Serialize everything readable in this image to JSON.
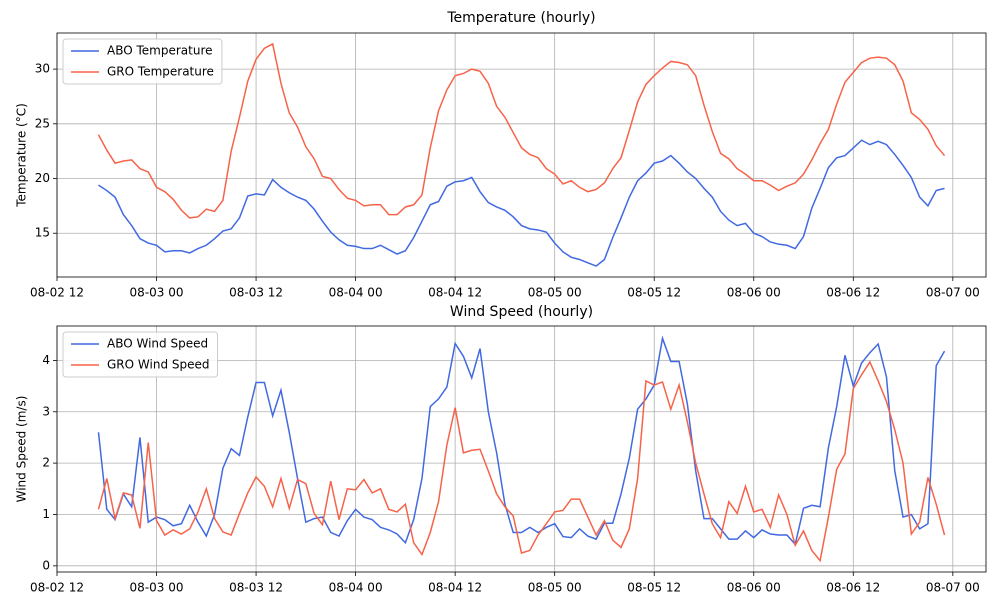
{
  "chart_data": [
    {
      "type": "line",
      "title": "Temperature (hourly)",
      "ylabel": "Temperature (°C)",
      "x": [
        "08-02 17",
        "08-02 18",
        "08-02 19",
        "08-02 20",
        "08-02 21",
        "08-02 22",
        "08-02 23",
        "08-03 00",
        "08-03 01",
        "08-03 02",
        "08-03 03",
        "08-03 04",
        "08-03 05",
        "08-03 06",
        "08-03 07",
        "08-03 08",
        "08-03 09",
        "08-03 10",
        "08-03 11",
        "08-03 12",
        "08-03 13",
        "08-03 14",
        "08-03 15",
        "08-03 16",
        "08-03 17",
        "08-03 18",
        "08-03 19",
        "08-03 20",
        "08-03 21",
        "08-03 22",
        "08-03 23",
        "08-04 00",
        "08-04 01",
        "08-04 02",
        "08-04 03",
        "08-04 04",
        "08-04 05",
        "08-04 06",
        "08-04 07",
        "08-04 08",
        "08-04 09",
        "08-04 10",
        "08-04 11",
        "08-04 12",
        "08-04 13",
        "08-04 14",
        "08-04 15",
        "08-04 16",
        "08-04 17",
        "08-04 18",
        "08-04 19",
        "08-04 20",
        "08-04 21",
        "08-04 22",
        "08-04 23",
        "08-05 00",
        "08-05 01",
        "08-05 02",
        "08-05 03",
        "08-05 04",
        "08-05 05",
        "08-05 06",
        "08-05 07",
        "08-05 08",
        "08-05 09",
        "08-05 10",
        "08-05 11",
        "08-05 12",
        "08-05 13",
        "08-05 14",
        "08-05 15",
        "08-05 16",
        "08-05 17",
        "08-05 18",
        "08-05 19",
        "08-05 20",
        "08-05 21",
        "08-05 22",
        "08-05 23",
        "08-06 00",
        "08-06 01",
        "08-06 02",
        "08-06 03",
        "08-06 04",
        "08-06 05",
        "08-06 06",
        "08-06 07",
        "08-06 08",
        "08-06 09",
        "08-06 10",
        "08-06 11",
        "08-06 12",
        "08-06 13",
        "08-06 14",
        "08-06 15",
        "08-06 16",
        "08-06 17",
        "08-06 18",
        "08-06 19",
        "08-06 20",
        "08-06 21",
        "08-06 22",
        "08-06 23"
      ],
      "series": [
        {
          "name": "ABO Temperature",
          "color": "#4169e1",
          "values": [
            19.4,
            18.9,
            18.3,
            16.7,
            15.7,
            14.5,
            14.1,
            13.9,
            13.3,
            13.4,
            13.4,
            13.2,
            13.6,
            13.9,
            14.5,
            15.2,
            15.4,
            16.4,
            18.4,
            18.6,
            18.5,
            19.9,
            19.2,
            18.7,
            18.3,
            18.0,
            17.2,
            16.1,
            15.1,
            14.4,
            13.9,
            13.8,
            13.6,
            13.6,
            13.9,
            13.5,
            13.1,
            13.4,
            14.6,
            16.1,
            17.6,
            17.9,
            19.3,
            19.7,
            19.8,
            20.1,
            18.8,
            17.8,
            17.4,
            17.1,
            16.5,
            15.7,
            15.4,
            15.3,
            15.1,
            14.1,
            13.3,
            12.8,
            12.6,
            12.3,
            12.0,
            12.6,
            14.6,
            16.4,
            18.3,
            19.8,
            20.5,
            21.4,
            21.6,
            22.1,
            21.4,
            20.6,
            20.0,
            19.1,
            18.3,
            17.0,
            16.2,
            15.7,
            15.9,
            15.0,
            14.7,
            14.2,
            14.0,
            13.9,
            13.6,
            14.7,
            17.3,
            19.1,
            21.0,
            21.9,
            22.1,
            22.8,
            23.5,
            23.1,
            23.4,
            23.1,
            22.2,
            21.2,
            20.1,
            18.3,
            17.5,
            18.9,
            19.1
          ]
        },
        {
          "name": "GRO Temperature",
          "color": "#f7634a",
          "values": [
            24.0,
            22.6,
            21.4,
            21.6,
            21.7,
            20.9,
            20.6,
            19.2,
            18.8,
            18.1,
            17.1,
            16.4,
            16.5,
            17.2,
            17.0,
            18.0,
            22.5,
            25.6,
            28.9,
            30.9,
            31.9,
            32.3,
            28.7,
            26.0,
            24.7,
            22.9,
            21.8,
            20.2,
            20.0,
            19.0,
            18.2,
            18.0,
            17.5,
            17.6,
            17.6,
            16.7,
            16.7,
            17.4,
            17.6,
            18.5,
            22.8,
            26.2,
            28.1,
            29.4,
            29.6,
            30.0,
            29.8,
            28.7,
            26.6,
            25.6,
            24.2,
            22.8,
            22.2,
            21.9,
            20.9,
            20.4,
            19.5,
            19.8,
            19.2,
            18.8,
            19.0,
            19.6,
            20.9,
            21.9,
            24.4,
            27.0,
            28.6,
            29.4,
            30.1,
            30.7,
            30.6,
            30.4,
            29.4,
            26.7,
            24.3,
            22.3,
            21.8,
            20.9,
            20.4,
            19.8,
            19.8,
            19.4,
            18.9,
            19.3,
            19.6,
            20.4,
            21.7,
            23.2,
            24.5,
            26.8,
            28.8,
            29.7,
            30.6,
            31.0,
            31.1,
            31.0,
            30.4,
            28.9,
            26.0,
            25.4,
            24.5,
            23.0,
            22.1
          ]
        }
      ],
      "xlim": [
        "08-02 12",
        "08-07 04"
      ],
      "xticks": [
        "08-02 12",
        "08-03 00",
        "08-03 12",
        "08-04 00",
        "08-04 12",
        "08-05 00",
        "08-05 12",
        "08-06 00",
        "08-06 12",
        "08-07 00"
      ],
      "ylim": [
        11.0,
        33.3
      ],
      "yticks": [
        15,
        20,
        25,
        30
      ],
      "grid": true,
      "legend": "upper left"
    },
    {
      "type": "line",
      "title": "Wind Speed (hourly)",
      "ylabel": "Wind Speed (m/s)",
      "x": [
        "08-02 17",
        "08-02 18",
        "08-02 19",
        "08-02 20",
        "08-02 21",
        "08-02 22",
        "08-02 23",
        "08-03 00",
        "08-03 01",
        "08-03 02",
        "08-03 03",
        "08-03 04",
        "08-03 05",
        "08-03 06",
        "08-03 07",
        "08-03 08",
        "08-03 09",
        "08-03 10",
        "08-03 11",
        "08-03 12",
        "08-03 13",
        "08-03 14",
        "08-03 15",
        "08-03 16",
        "08-03 17",
        "08-03 18",
        "08-03 19",
        "08-03 20",
        "08-03 21",
        "08-03 22",
        "08-03 23",
        "08-04 00",
        "08-04 01",
        "08-04 02",
        "08-04 03",
        "08-04 04",
        "08-04 05",
        "08-04 06",
        "08-04 07",
        "08-04 08",
        "08-04 09",
        "08-04 10",
        "08-04 11",
        "08-04 12",
        "08-04 13",
        "08-04 14",
        "08-04 15",
        "08-04 16",
        "08-04 17",
        "08-04 18",
        "08-04 19",
        "08-04 20",
        "08-04 21",
        "08-04 22",
        "08-04 23",
        "08-05 00",
        "08-05 01",
        "08-05 02",
        "08-05 03",
        "08-05 04",
        "08-05 05",
        "08-05 06",
        "08-05 07",
        "08-05 08",
        "08-05 09",
        "08-05 10",
        "08-05 11",
        "08-05 12",
        "08-05 13",
        "08-05 14",
        "08-05 15",
        "08-05 16",
        "08-05 17",
        "08-05 18",
        "08-05 19",
        "08-05 20",
        "08-05 21",
        "08-05 22",
        "08-05 23",
        "08-06 00",
        "08-06 01",
        "08-06 02",
        "08-06 03",
        "08-06 04",
        "08-06 05",
        "08-06 06",
        "08-06 07",
        "08-06 08",
        "08-06 09",
        "08-06 10",
        "08-06 11",
        "08-06 12",
        "08-06 13",
        "08-06 14",
        "08-06 15",
        "08-06 16",
        "08-06 17",
        "08-06 18",
        "08-06 19",
        "08-06 20",
        "08-06 21",
        "08-06 22",
        "08-06 23"
      ],
      "series": [
        {
          "name": "ABO Wind Speed",
          "color": "#4169e1",
          "values": [
            2.6,
            1.1,
            0.9,
            1.4,
            1.15,
            2.5,
            0.85,
            0.95,
            0.9,
            0.78,
            0.82,
            1.18,
            0.85,
            0.58,
            1.0,
            1.9,
            2.28,
            2.15,
            2.9,
            3.57,
            3.57,
            2.92,
            3.42,
            2.6,
            1.7,
            0.85,
            0.92,
            0.95,
            0.65,
            0.58,
            0.88,
            1.1,
            0.95,
            0.9,
            0.75,
            0.7,
            0.62,
            0.45,
            0.9,
            1.7,
            3.1,
            3.25,
            3.48,
            4.33,
            4.08,
            3.66,
            4.23,
            3.0,
            2.2,
            1.2,
            0.65,
            0.65,
            0.75,
            0.65,
            0.75,
            0.82,
            0.57,
            0.55,
            0.72,
            0.58,
            0.52,
            0.83,
            0.83,
            1.4,
            2.1,
            3.05,
            3.25,
            3.52,
            4.43,
            3.98,
            3.98,
            3.15,
            1.85,
            0.92,
            0.92,
            0.72,
            0.52,
            0.52,
            0.68,
            0.55,
            0.7,
            0.62,
            0.6,
            0.6,
            0.42,
            1.12,
            1.18,
            1.15,
            2.3,
            3.1,
            4.1,
            3.5,
            3.95,
            4.15,
            4.32,
            3.68,
            1.85,
            0.95,
            1.0,
            0.72,
            0.82,
            3.9,
            4.18
          ]
        },
        {
          "name": "GRO Wind Speed",
          "color": "#f7634a",
          "values": [
            1.1,
            1.7,
            0.92,
            1.42,
            1.38,
            0.73,
            2.4,
            0.88,
            0.6,
            0.7,
            0.62,
            0.72,
            1.05,
            1.5,
            0.92,
            0.66,
            0.6,
            1.02,
            1.42,
            1.73,
            1.55,
            1.15,
            1.7,
            1.12,
            1.68,
            1.6,
            1.02,
            0.8,
            1.65,
            0.9,
            1.5,
            1.48,
            1.68,
            1.42,
            1.5,
            1.1,
            1.05,
            1.2,
            0.45,
            0.22,
            0.65,
            1.25,
            2.35,
            3.08,
            2.2,
            2.25,
            2.27,
            1.85,
            1.4,
            1.15,
            0.97,
            0.25,
            0.3,
            0.6,
            0.82,
            1.05,
            1.08,
            1.3,
            1.3,
            0.95,
            0.6,
            0.88,
            0.5,
            0.36,
            0.72,
            1.7,
            3.6,
            3.52,
            3.58,
            3.05,
            3.52,
            2.8,
            2.0,
            1.4,
            0.82,
            0.55,
            1.25,
            1.02,
            1.55,
            1.05,
            1.1,
            0.75,
            1.38,
            1.0,
            0.4,
            0.68,
            0.3,
            0.1,
            0.95,
            1.88,
            2.18,
            3.45,
            3.72,
            3.97,
            3.6,
            3.2,
            2.65,
            2.0,
            0.62,
            0.85,
            1.72,
            1.2,
            0.6
          ]
        }
      ],
      "xlim": [
        "08-02 12",
        "08-07 04"
      ],
      "xticks": [
        "08-02 12",
        "08-03 00",
        "08-03 12",
        "08-04 00",
        "08-04 12",
        "08-05 00",
        "08-05 12",
        "08-06 00",
        "08-06 12",
        "08-07 00"
      ],
      "ylim": [
        -0.12,
        4.67
      ],
      "yticks": [
        0,
        1,
        2,
        3,
        4
      ],
      "grid": true,
      "legend": "upper left"
    }
  ]
}
